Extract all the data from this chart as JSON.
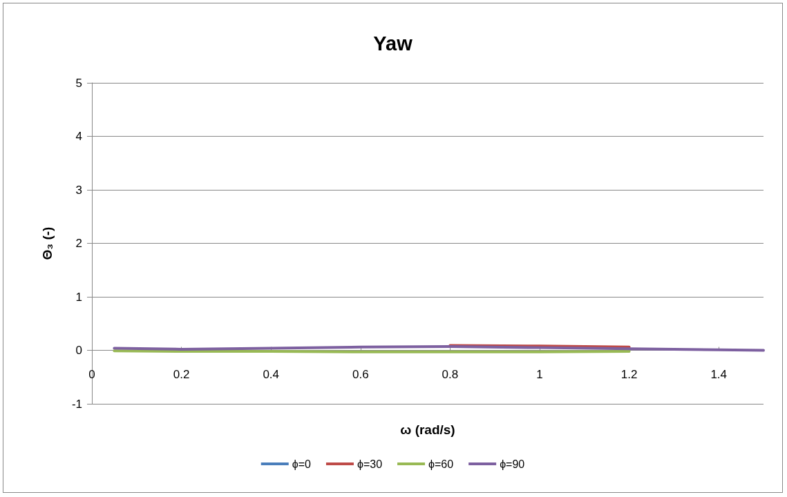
{
  "chart_data": {
    "type": "line",
    "title": "Yaw",
    "xlabel": "ω (rad/s)",
    "ylabel": "Θ₃ (-)",
    "x": [
      0.05,
      0.2,
      0.4,
      0.6,
      0.8,
      1.0,
      1.2,
      1.4,
      1.5
    ],
    "series": [
      {
        "name": "ϕ=0",
        "color": "#4a7ebb",
        "values": [
          null,
          null,
          null,
          null,
          null,
          null,
          null,
          null,
          null
        ]
      },
      {
        "name": "ϕ=30",
        "color": "#be4b48",
        "values": [
          null,
          null,
          null,
          null,
          0.09,
          0.08,
          0.06,
          null,
          null
        ]
      },
      {
        "name": "ϕ=60",
        "color": "#98b954",
        "values": [
          -0.01,
          -0.02,
          -0.02,
          -0.03,
          -0.03,
          -0.03,
          -0.02,
          null,
          null
        ]
      },
      {
        "name": "ϕ=90",
        "color": "#7d60a0",
        "values": [
          0.04,
          0.02,
          0.04,
          0.06,
          0.07,
          0.05,
          0.03,
          0.01,
          0.0
        ]
      }
    ],
    "xlim": [
      0,
      1.5
    ],
    "xticks": [
      0,
      0.2,
      0.4,
      0.6,
      0.8,
      1,
      1.2,
      1.4
    ],
    "ylim": [
      -1,
      5
    ],
    "yticks": [
      -1,
      0,
      1,
      2,
      3,
      4,
      5
    ],
    "grid": "y",
    "legend": "bottom",
    "marker": "none",
    "line_style": "solid"
  }
}
